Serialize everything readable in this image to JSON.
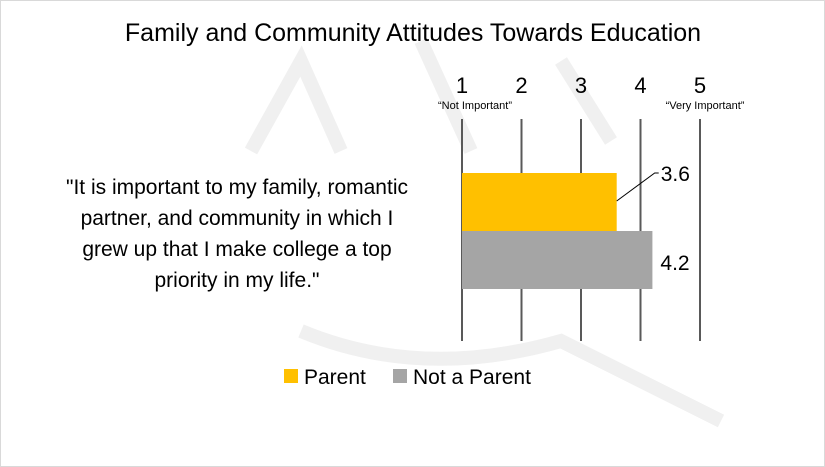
{
  "chart_data": {
    "type": "bar",
    "orientation": "horizontal",
    "title": "Family and Community Attitudes Towards Education",
    "categories": [
      "\"It is important to my family, romantic partner, and community in which I grew up that I make college a top priority in my life.\""
    ],
    "category_lines": [
      "\"It is important to my family, romantic",
      "partner, and community in which I",
      "grew up that I make college a top",
      "priority in my life.\""
    ],
    "series": [
      {
        "name": "Parent",
        "values": [
          3.6
        ],
        "color": "#FFC000",
        "label": "3.6"
      },
      {
        "name": "Not a Parent",
        "values": [
          4.2
        ],
        "color": "#A5A5A5",
        "label": "4.2"
      }
    ],
    "xlim": [
      1,
      5
    ],
    "x_ticks": [
      "1",
      "2",
      "3",
      "4",
      "5"
    ],
    "x_anchor_labels": {
      "low": "“Not Important”",
      "high": "“Very Important”"
    },
    "grid": true,
    "legend": "bottom"
  }
}
